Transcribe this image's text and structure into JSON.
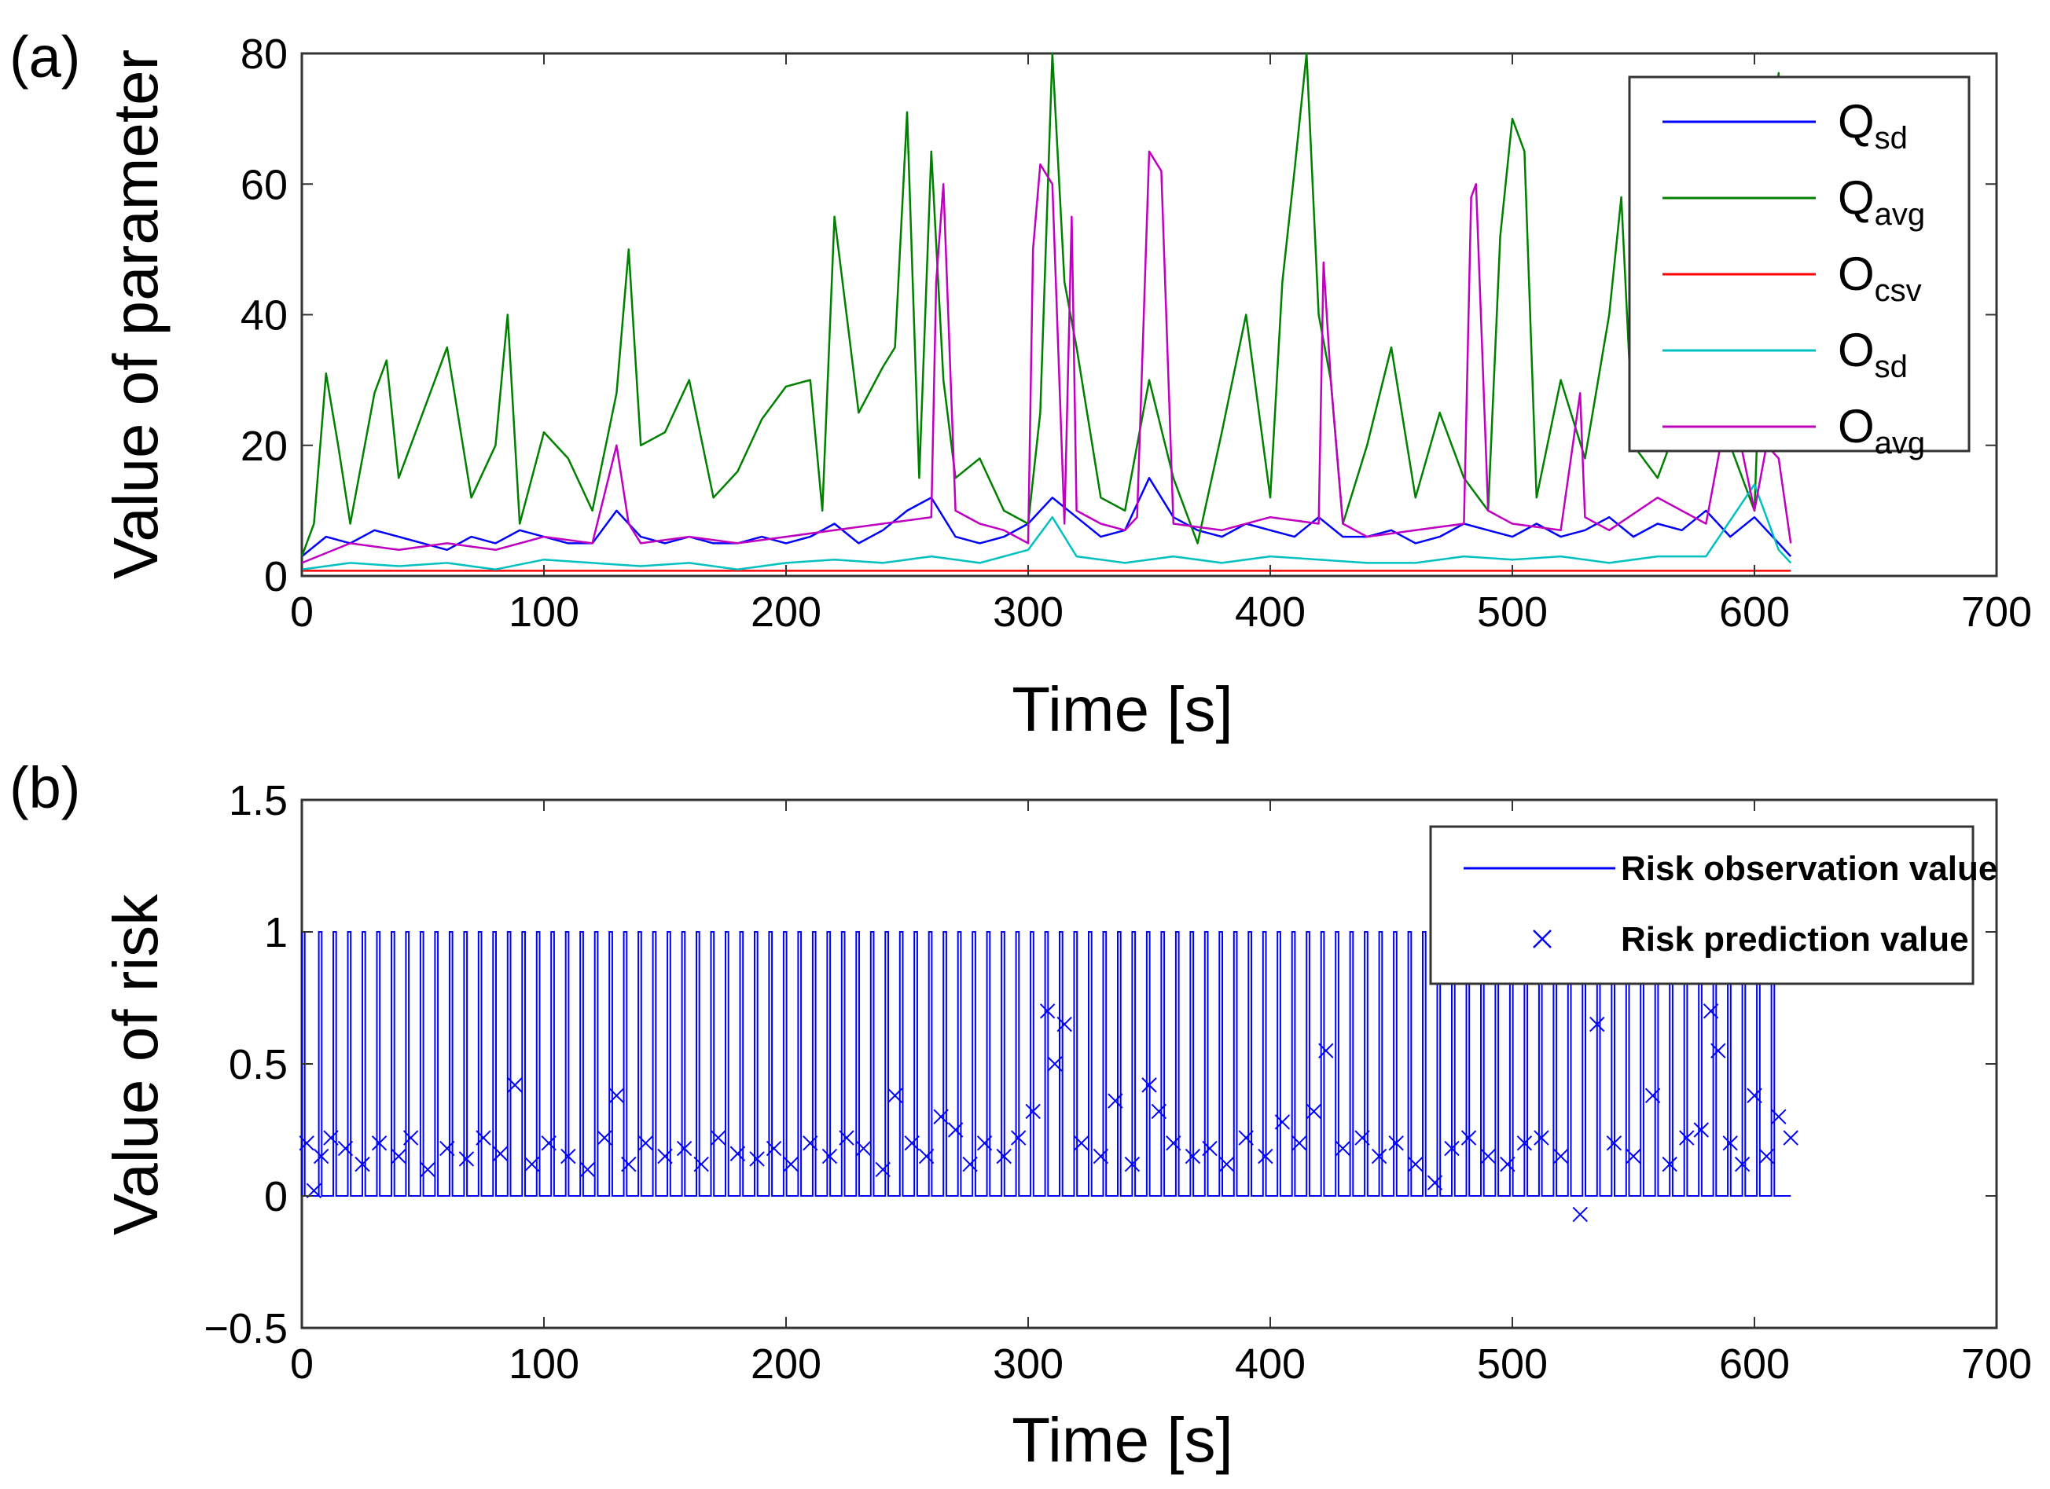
{
  "chart_data": [
    {
      "panel_label": "(a)",
      "type": "line",
      "xlabel": "Time [s]",
      "ylabel": "Value of parameter",
      "xlim": [
        0,
        700
      ],
      "ylim": [
        0,
        80
      ],
      "x_ticks": [
        "0",
        "100",
        "200",
        "300",
        "400",
        "500",
        "600",
        "700"
      ],
      "y_ticks": [
        "0",
        "20",
        "40",
        "60",
        "80"
      ],
      "legend_position": "top-right",
      "series": [
        {
          "name": "Qsd",
          "label_main": "Q",
          "label_sub": "sd",
          "color": "#0000ff",
          "x": [
            0,
            10,
            20,
            30,
            40,
            50,
            60,
            70,
            80,
            90,
            100,
            110,
            120,
            130,
            140,
            150,
            160,
            170,
            180,
            190,
            200,
            210,
            220,
            230,
            240,
            250,
            260,
            270,
            280,
            290,
            300,
            310,
            320,
            330,
            340,
            350,
            360,
            370,
            380,
            390,
            400,
            410,
            420,
            430,
            440,
            450,
            460,
            470,
            480,
            490,
            500,
            510,
            520,
            530,
            540,
            550,
            560,
            570,
            580,
            590,
            600,
            610,
            615
          ],
          "values": [
            3,
            6,
            5,
            7,
            6,
            5,
            4,
            6,
            5,
            7,
            6,
            5,
            5,
            10,
            6,
            5,
            6,
            5,
            5,
            6,
            5,
            6,
            8,
            5,
            7,
            10,
            12,
            6,
            5,
            6,
            8,
            12,
            9,
            6,
            7,
            15,
            9,
            7,
            6,
            8,
            7,
            6,
            9,
            6,
            6,
            7,
            5,
            6,
            8,
            7,
            6,
            8,
            6,
            7,
            9,
            6,
            8,
            7,
            10,
            6,
            9,
            5,
            3
          ]
        },
        {
          "name": "Qavg",
          "label_main": "Q",
          "label_sub": "avg",
          "color": "#008000",
          "x": [
            0,
            5,
            10,
            15,
            20,
            30,
            35,
            40,
            50,
            60,
            70,
            80,
            85,
            90,
            100,
            110,
            120,
            130,
            135,
            140,
            150,
            160,
            170,
            180,
            190,
            200,
            210,
            215,
            220,
            230,
            240,
            245,
            250,
            255,
            260,
            265,
            270,
            280,
            290,
            300,
            305,
            310,
            315,
            320,
            330,
            340,
            350,
            360,
            370,
            380,
            390,
            400,
            405,
            410,
            415,
            420,
            425,
            430,
            440,
            450,
            460,
            470,
            480,
            490,
            495,
            500,
            505,
            510,
            520,
            530,
            540,
            545,
            550,
            560,
            570,
            580,
            590,
            600,
            605,
            610,
            615
          ],
          "values": [
            3,
            8,
            31,
            20,
            8,
            28,
            33,
            15,
            25,
            35,
            12,
            20,
            40,
            8,
            22,
            18,
            10,
            28,
            50,
            20,
            22,
            30,
            12,
            16,
            24,
            29,
            30,
            10,
            55,
            25,
            32,
            35,
            71,
            15,
            65,
            30,
            15,
            18,
            10,
            8,
            25,
            80,
            45,
            35,
            12,
            10,
            30,
            15,
            5,
            22,
            40,
            12,
            45,
            62,
            80,
            40,
            30,
            8,
            20,
            35,
            12,
            25,
            15,
            10,
            52,
            70,
            65,
            12,
            30,
            18,
            40,
            58,
            20,
            15,
            25,
            30,
            20,
            10,
            60,
            77,
            25
          ]
        },
        {
          "name": "Ocsv",
          "label_main": "O",
          "label_sub": "csv",
          "color": "#ff0000",
          "x": [
            0,
            615
          ],
          "values": [
            0.8,
            0.8
          ]
        },
        {
          "name": "Osd",
          "label_main": "O",
          "label_sub": "sd",
          "color": "#00c0c0",
          "x": [
            0,
            20,
            40,
            60,
            80,
            100,
            120,
            140,
            160,
            180,
            200,
            220,
            240,
            260,
            280,
            300,
            310,
            320,
            340,
            360,
            380,
            400,
            420,
            440,
            460,
            480,
            500,
            520,
            540,
            560,
            580,
            600,
            610,
            615
          ],
          "values": [
            1,
            2,
            1.5,
            2,
            1,
            2.5,
            2,
            1.5,
            2,
            1,
            2,
            2.5,
            2,
            3,
            2,
            4,
            9,
            3,
            2,
            3,
            2,
            3,
            2.5,
            2,
            2,
            3,
            2.5,
            3,
            2,
            3,
            3,
            14,
            4,
            2
          ]
        },
        {
          "name": "Oavg",
          "label_main": "O",
          "label_sub": "avg",
          "color": "#c000c0",
          "x": [
            0,
            20,
            40,
            60,
            80,
            100,
            120,
            130,
            135,
            140,
            160,
            180,
            200,
            220,
            240,
            260,
            262,
            265,
            270,
            280,
            290,
            300,
            302,
            305,
            310,
            315,
            318,
            320,
            330,
            340,
            345,
            350,
            355,
            360,
            380,
            400,
            420,
            422,
            425,
            430,
            440,
            460,
            480,
            483,
            485,
            490,
            500,
            520,
            528,
            530,
            540,
            560,
            580,
            590,
            600,
            605,
            610,
            615
          ],
          "values": [
            2,
            5,
            4,
            5,
            4,
            6,
            5,
            20,
            8,
            5,
            6,
            5,
            6,
            7,
            8,
            9,
            45,
            60,
            10,
            8,
            7,
            5,
            50,
            63,
            60,
            8,
            55,
            10,
            8,
            7,
            9,
            65,
            62,
            8,
            7,
            9,
            8,
            48,
            30,
            8,
            6,
            7,
            8,
            58,
            60,
            10,
            8,
            7,
            28,
            9,
            7,
            12,
            8,
            28,
            10,
            20,
            18,
            5
          ]
        }
      ]
    },
    {
      "panel_label": "(b)",
      "type": "line",
      "xlabel": "Time [s]",
      "ylabel": "Value of risk",
      "xlim": [
        0,
        700
      ],
      "ylim": [
        -0.5,
        1.5
      ],
      "x_ticks": [
        "0",
        "100",
        "200",
        "300",
        "400",
        "500",
        "600",
        "700"
      ],
      "y_ticks": [
        "−0.5",
        "0",
        "0.5",
        "1",
        "1.5"
      ],
      "legend_position": "top-right",
      "series": [
        {
          "name": "Risk observation value",
          "color": "#0000ff",
          "marker": "line",
          "pulse_times": [
            0,
            7,
            13,
            19,
            25,
            31,
            37,
            43,
            49,
            55,
            61,
            67,
            73,
            79,
            85,
            91,
            97,
            103,
            109,
            115,
            121,
            127,
            133,
            139,
            145,
            151,
            157,
            163,
            169,
            175,
            181,
            187,
            193,
            199,
            205,
            211,
            217,
            223,
            229,
            235,
            241,
            247,
            253,
            259,
            265,
            271,
            277,
            283,
            289,
            295,
            301,
            307,
            313,
            319,
            325,
            331,
            337,
            343,
            349,
            355,
            361,
            367,
            373,
            379,
            385,
            391,
            397,
            403,
            409,
            415,
            421,
            427,
            433,
            439,
            445,
            451,
            457,
            463,
            469,
            475,
            481,
            487,
            493,
            499,
            505,
            511,
            517,
            523,
            529,
            535,
            541,
            547,
            553,
            559,
            565,
            571,
            577,
            583,
            589,
            595,
            601,
            607
          ],
          "values_high": 1,
          "values_low": 0,
          "end_x": 615
        },
        {
          "name": "Risk prediction value",
          "color": "#0000ff",
          "marker": "x",
          "x": [
            2,
            5,
            8,
            12,
            18,
            25,
            32,
            40,
            45,
            52,
            60,
            68,
            75,
            82,
            88,
            95,
            102,
            110,
            118,
            125,
            130,
            135,
            142,
            150,
            158,
            165,
            172,
            180,
            188,
            195,
            202,
            210,
            218,
            225,
            232,
            240,
            245,
            252,
            258,
            264,
            270,
            276,
            282,
            290,
            296,
            302,
            308,
            311,
            315,
            322,
            330,
            336,
            343,
            350,
            354,
            360,
            368,
            375,
            382,
            390,
            398,
            405,
            412,
            418,
            423,
            430,
            438,
            445,
            452,
            460,
            468,
            475,
            482,
            490,
            498,
            505,
            512,
            520,
            528,
            535,
            542,
            550,
            558,
            565,
            572,
            578,
            582,
            585,
            590,
            595,
            600,
            605,
            610,
            615
          ],
          "values": [
            0.2,
            0.02,
            0.15,
            0.22,
            0.18,
            0.12,
            0.2,
            0.15,
            0.22,
            0.1,
            0.18,
            0.14,
            0.22,
            0.16,
            0.42,
            0.12,
            0.2,
            0.15,
            0.1,
            0.22,
            0.38,
            0.12,
            0.2,
            0.15,
            0.18,
            0.12,
            0.22,
            0.16,
            0.14,
            0.18,
            0.12,
            0.2,
            0.15,
            0.22,
            0.18,
            0.1,
            0.38,
            0.2,
            0.15,
            0.3,
            0.25,
            0.12,
            0.2,
            0.15,
            0.22,
            0.32,
            0.7,
            0.5,
            0.65,
            0.2,
            0.15,
            0.36,
            0.12,
            0.42,
            0.32,
            0.2,
            0.15,
            0.18,
            0.12,
            0.22,
            0.15,
            0.28,
            0.2,
            0.32,
            0.55,
            0.18,
            0.22,
            0.15,
            0.2,
            0.12,
            0.05,
            0.18,
            0.22,
            0.15,
            0.12,
            0.2,
            0.22,
            0.15,
            -0.07,
            0.65,
            0.2,
            0.15,
            0.38,
            0.12,
            0.22,
            0.25,
            0.7,
            0.55,
            0.2,
            0.12,
            0.38,
            0.15,
            0.3,
            0.22
          ]
        }
      ]
    }
  ]
}
